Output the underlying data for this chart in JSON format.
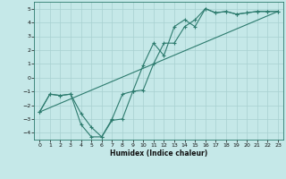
{
  "xlabel": "Humidex (Indice chaleur)",
  "bg_color": "#c5e8e8",
  "line_color": "#2d7b6e",
  "xlim": [
    -0.5,
    23.5
  ],
  "ylim": [
    -4.5,
    5.5
  ],
  "xticks": [
    0,
    1,
    2,
    3,
    4,
    5,
    6,
    7,
    8,
    9,
    10,
    11,
    12,
    13,
    14,
    15,
    16,
    17,
    18,
    19,
    20,
    21,
    22,
    23
  ],
  "yticks": [
    -4,
    -3,
    -2,
    -1,
    0,
    1,
    2,
    3,
    4,
    5
  ],
  "line1_x": [
    0,
    1,
    2,
    3,
    4,
    5,
    6,
    7,
    8,
    9,
    10,
    11,
    12,
    13,
    14,
    15,
    16,
    17,
    18,
    19,
    20,
    21,
    22,
    23
  ],
  "line1_y": [
    -2.5,
    -1.2,
    -1.3,
    -1.2,
    -2.6,
    -3.6,
    -4.3,
    -3.0,
    -1.2,
    -1.0,
    0.9,
    2.5,
    1.6,
    3.7,
    4.2,
    3.7,
    5.0,
    4.7,
    4.8,
    4.6,
    4.7,
    4.8,
    4.8,
    4.8
  ],
  "line2_x": [
    0,
    1,
    2,
    3,
    4,
    5,
    6,
    7,
    8,
    9,
    10,
    11,
    12,
    13,
    14,
    15,
    16,
    17,
    18,
    19,
    20,
    21,
    22,
    23
  ],
  "line2_y": [
    -2.5,
    -1.2,
    -1.3,
    -1.2,
    -3.4,
    -4.3,
    -4.3,
    -3.1,
    -3.0,
    -1.0,
    -0.9,
    1.0,
    2.5,
    2.5,
    3.7,
    4.2,
    5.0,
    4.7,
    4.8,
    4.6,
    4.7,
    4.8,
    4.8,
    4.8
  ],
  "line3_x": [
    0,
    23
  ],
  "line3_y": [
    -2.5,
    4.8
  ]
}
